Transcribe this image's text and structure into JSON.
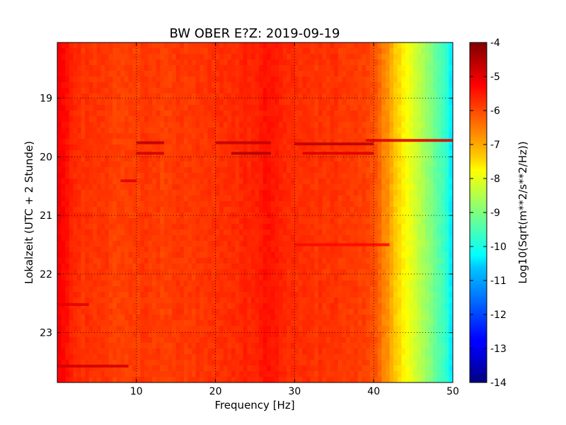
{
  "chart_data": {
    "type": "heatmap",
    "title": "BW OBER E?Z: 2019-09-19",
    "xlabel": "Frequency [Hz]",
    "ylabel": "Lokalzeit (UTC + 2 Stunde)",
    "xlim": [
      0,
      50
    ],
    "ylim": [
      18.05,
      23.85
    ],
    "y_inverted": true,
    "x_ticks": [
      "10",
      "20",
      "30",
      "40",
      "50"
    ],
    "y_ticks": [
      "19",
      "20",
      "21",
      "22",
      "23"
    ],
    "grid": true,
    "colormap": "jet",
    "colorbar": {
      "label": "Log10(Sqrt(m**2/s**2/Hz))",
      "range": [
        -14,
        -4
      ],
      "ticks": [
        "-4",
        "-5",
        "-6",
        "-7",
        "-8",
        "-9",
        "-10",
        "-11",
        "-12",
        "-13",
        "-14"
      ]
    },
    "spectral_profile": {
      "frequency_hz": [
        0,
        1,
        3,
        5,
        8,
        10,
        13,
        16,
        20,
        24,
        26,
        27,
        28,
        30,
        33,
        36,
        38,
        40,
        41,
        42,
        43,
        44,
        45,
        46,
        47,
        48,
        49,
        50
      ],
      "level": [
        -5.2,
        -5.4,
        -5.7,
        -5.8,
        -5.85,
        -5.8,
        -5.85,
        -5.8,
        -5.75,
        -5.6,
        -5.45,
        -5.35,
        -5.6,
        -5.7,
        -5.75,
        -5.75,
        -5.8,
        -6.0,
        -6.4,
        -6.8,
        -7.3,
        -7.7,
        -8.1,
        -8.5,
        -8.9,
        -9.3,
        -9.7,
        -10.5
      ]
    },
    "events": [
      {
        "time": 19.76,
        "f_from": 10,
        "f_to": 13.5,
        "level": -4.6
      },
      {
        "time": 19.94,
        "f_from": 10,
        "f_to": 13.5,
        "level": -4.8
      },
      {
        "time": 19.76,
        "f_from": 20,
        "f_to": 27,
        "level": -4.7
      },
      {
        "time": 19.94,
        "f_from": 22,
        "f_to": 27,
        "level": -4.5
      },
      {
        "time": 19.78,
        "f_from": 30,
        "f_to": 40,
        "level": -4.6
      },
      {
        "time": 19.94,
        "f_from": 31,
        "f_to": 40,
        "level": -4.9
      },
      {
        "time": 19.72,
        "f_from": 39,
        "f_to": 50,
        "level": -4.9
      },
      {
        "time": 20.41,
        "f_from": 8,
        "f_to": 10,
        "level": -5.0
      },
      {
        "time": 21.5,
        "f_from": 30,
        "f_to": 42,
        "level": -5.3
      },
      {
        "time": 22.52,
        "f_from": 0,
        "f_to": 4,
        "level": -5.0
      },
      {
        "time": 23.57,
        "f_from": 0,
        "f_to": 9,
        "level": -4.8
      }
    ]
  }
}
